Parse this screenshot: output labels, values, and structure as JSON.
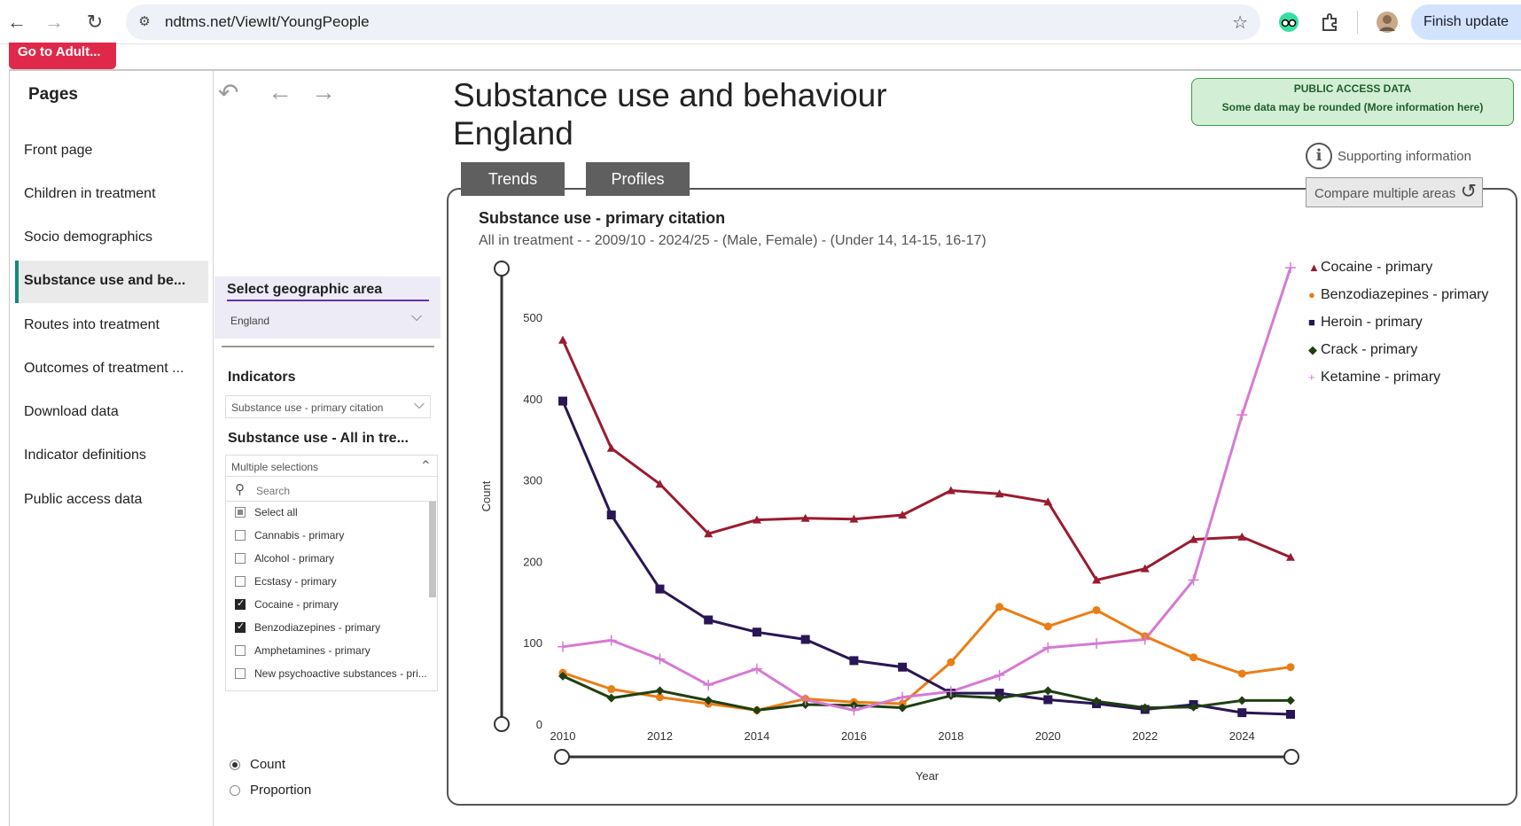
{
  "browser": {
    "url": "ndtms.net/ViewIt/YoungPeople",
    "finish_update_label": "Finish update"
  },
  "adult_button_label": "Go to Adult...",
  "sidebar": {
    "title": "Pages",
    "items": [
      {
        "label": "Front page",
        "active": false
      },
      {
        "label": "Children in treatment",
        "active": false
      },
      {
        "label": "Socio demographics",
        "active": false
      },
      {
        "label": "Substance use and be...",
        "active": true
      },
      {
        "label": "Routes into treatment",
        "active": false
      },
      {
        "label": "Outcomes of treatment ...",
        "active": false
      },
      {
        "label": "Download data",
        "active": false
      },
      {
        "label": "Indicator definitions",
        "active": false
      },
      {
        "label": "Public access data",
        "active": false
      }
    ]
  },
  "filters": {
    "geo_label": "Select geographic area",
    "geo_value": "England",
    "indicators_label": "Indicators",
    "indicators_value": "Substance use - primary citation",
    "substance_label": "Substance use - All in tre...",
    "multi_value": "Multiple selections",
    "search_placeholder": "Search",
    "options": [
      {
        "label": "Select all",
        "state": "partial"
      },
      {
        "label": "Cannabis - primary",
        "state": "unchecked"
      },
      {
        "label": "Alcohol - primary",
        "state": "unchecked"
      },
      {
        "label": "Ecstasy - primary",
        "state": "unchecked"
      },
      {
        "label": "Cocaine - primary",
        "state": "checked"
      },
      {
        "label": "Benzodiazepines - primary",
        "state": "checked"
      },
      {
        "label": "Amphetamines - primary",
        "state": "unchecked"
      },
      {
        "label": "New psychoactive substances - pri...",
        "state": "unchecked"
      }
    ],
    "measure_options": [
      {
        "label": "Count",
        "selected": true
      },
      {
        "label": "Proportion",
        "selected": false
      }
    ]
  },
  "page_title_line1": "Substance use and behaviour",
  "page_title_line2": "England",
  "access_notice": {
    "line1": "PUBLIC ACCESS DATA",
    "line2": "Some data may be rounded (More information here)"
  },
  "supporting_info_label": "Supporting information",
  "compare_label": "Compare multiple areas",
  "tabs": [
    {
      "label": "Trends"
    },
    {
      "label": "Profiles"
    }
  ],
  "chart_data": {
    "type": "line",
    "title": "Substance use - primary citation",
    "subtitle": "All in treatment -  - 2009/10 - 2024/25 - (Male, Female) - (Under 14, 14-15, 16-17)",
    "xlabel": "Year",
    "ylabel": "Count",
    "xlim": [
      2009.75,
      2025
    ],
    "ylim": [
      0,
      565
    ],
    "x_ticks": [
      2010,
      2012,
      2014,
      2016,
      2018,
      2020,
      2022,
      2024
    ],
    "y_ticks": [
      0,
      100,
      200,
      300,
      400,
      500
    ],
    "legend_position": "top-right",
    "grid": false,
    "x": [
      2010,
      2011,
      2012,
      2013,
      2014,
      2015,
      2016,
      2017,
      2018,
      2019,
      2020,
      2021,
      2022,
      2023,
      2024,
      2025
    ],
    "series": [
      {
        "name": "Cocaine - primary",
        "color": "#9b1b30",
        "marker": "triangle",
        "values": [
          472,
          339,
          295,
          234,
          251,
          253,
          252,
          257,
          287,
          283,
          273,
          177,
          191,
          227,
          230,
          205
        ]
      },
      {
        "name": "Benzodiazepines - primary",
        "color": "#ea7e15",
        "marker": "circle",
        "values": [
          63,
          43,
          33,
          25,
          17,
          31,
          27,
          25,
          76,
          144,
          120,
          140,
          108,
          82,
          62,
          70
        ]
      },
      {
        "name": "Heroin - primary",
        "color": "#2a1654",
        "marker": "square",
        "values": [
          397,
          257,
          166,
          128,
          113,
          104,
          78,
          70,
          38,
          38,
          30,
          25,
          18,
          24,
          14,
          12
        ]
      },
      {
        "name": "Crack - primary",
        "color": "#1f3f12",
        "marker": "diamond",
        "values": [
          59,
          32,
          41,
          29,
          17,
          24,
          23,
          20,
          35,
          32,
          41,
          28,
          20,
          21,
          29,
          29
        ]
      },
      {
        "name": "Ketamine - primary",
        "color": "#d67ad3",
        "marker": "plus",
        "values": [
          95,
          103,
          80,
          48,
          68,
          30,
          17,
          33,
          40,
          60,
          94,
          99,
          104,
          177,
          380,
          561
        ]
      }
    ]
  }
}
